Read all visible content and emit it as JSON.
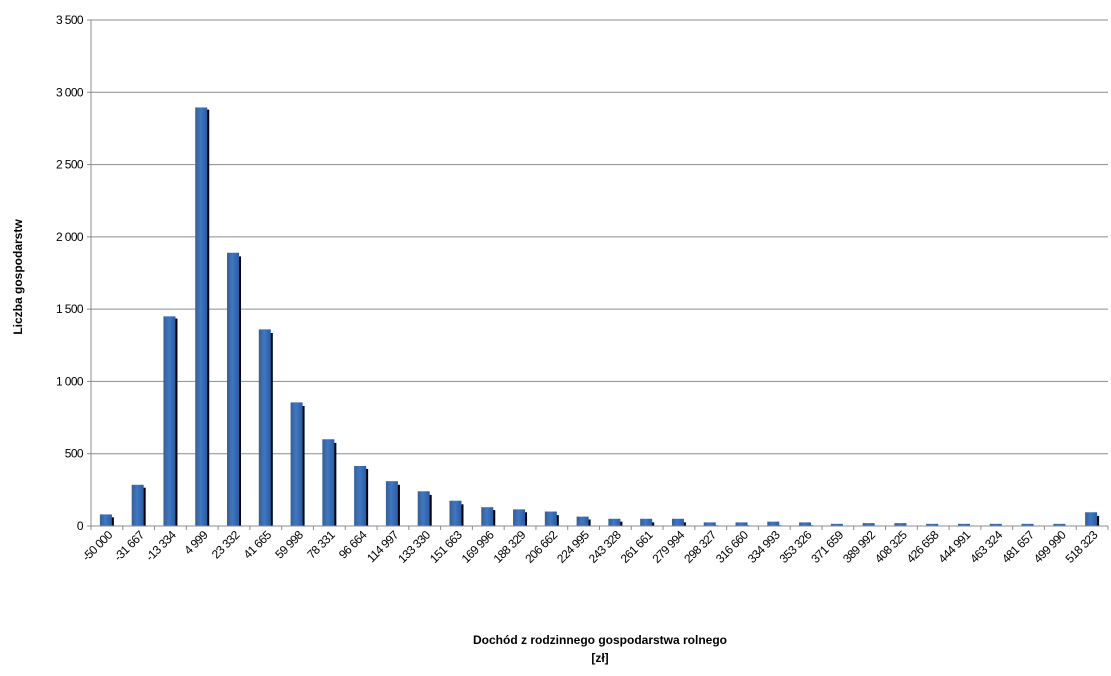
{
  "chart_data": {
    "type": "bar",
    "xlabel_line1": "Dochód z rodzinnego gospodarstwa rolnego",
    "xlabel_line2": "[zł]",
    "ylabel": "Liczba gospodarstw",
    "ylim": [
      0,
      3500
    ],
    "yticks": [
      "0",
      "500",
      "1 000",
      "1 500",
      "2 000",
      "2 500",
      "3 000",
      "3 500"
    ],
    "grid": true,
    "legend": "none",
    "colors": {
      "series1": "#3f77c4",
      "series2": "#000000"
    },
    "categories": [
      "-50 000",
      "-31 667",
      "-13 334",
      "4 999",
      "23 332",
      "41 665",
      "59 998",
      "78 331",
      "96 664",
      "114 997",
      "133 330",
      "151 663",
      "169 996",
      "188 329",
      "206 662",
      "224 995",
      "243 328",
      "261 661",
      "279 994",
      "298 327",
      "316 660",
      "334 993",
      "353 326",
      "371 659",
      "389 992",
      "408 325",
      "426 658",
      "444 991",
      "463 324",
      "481 657",
      "499 990",
      "518 323"
    ],
    "series": [
      {
        "values": [
          80,
          285,
          1450,
          2895,
          1890,
          1360,
          855,
          600,
          415,
          310,
          240,
          175,
          130,
          115,
          100,
          65,
          50,
          50,
          50,
          25,
          25,
          30,
          25,
          15,
          20,
          20,
          15,
          15,
          15,
          15,
          15,
          95
        ]
      },
      {
        "values": [
          60,
          265,
          1435,
          2880,
          1865,
          1335,
          830,
          575,
          395,
          285,
          215,
          150,
          110,
          95,
          75,
          45,
          30,
          25,
          25,
          5,
          5,
          5,
          5,
          0,
          0,
          0,
          0,
          0,
          0,
          0,
          0,
          70
        ]
      }
    ]
  }
}
